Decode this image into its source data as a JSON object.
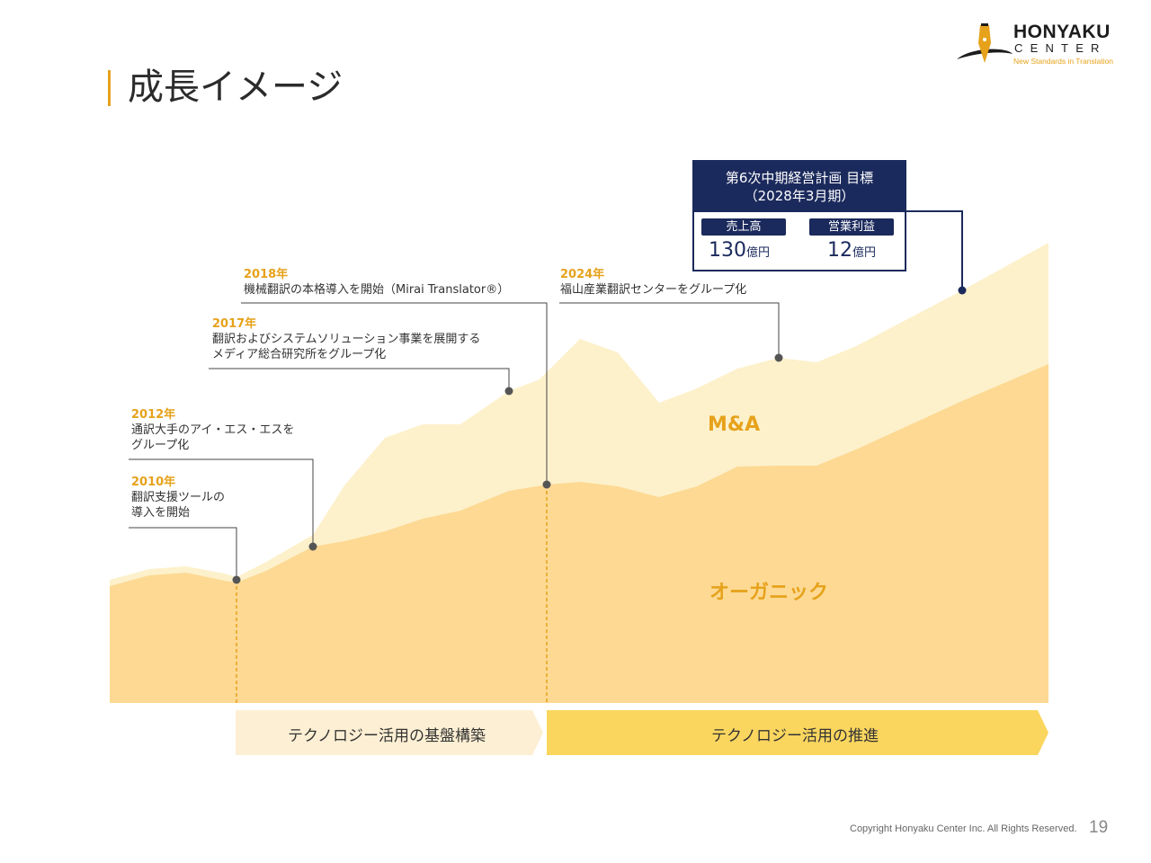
{
  "page": {
    "title": "成長イメージ",
    "page_number": "19",
    "copyright": "Copyright Honyaku Center Inc. All Rights Reserved."
  },
  "logo": {
    "main": "HONYAKU",
    "sub": "CENTER",
    "tagline": "New Standards in Translation"
  },
  "areas": {
    "ma_label": "M&A",
    "organic_label": "オーガニック"
  },
  "milestones": [
    {
      "year": "2010年",
      "lines": [
        "翻訳支援ツールの",
        "導入を開始"
      ]
    },
    {
      "year": "2012年",
      "lines": [
        "通訳大手のアイ・エス・エスを",
        "グループ化"
      ]
    },
    {
      "year": "2017年",
      "lines": [
        "翻訳およびシステムソリューション事業を展開する",
        "メディア総合研究所をグループ化"
      ]
    },
    {
      "year": "2018年",
      "lines": [
        "機械翻訳の本格導入を開始（Mirai Translator®）"
      ]
    },
    {
      "year": "2024年",
      "lines": [
        "福山産業翻訳センターをグループ化"
      ]
    }
  ],
  "target": {
    "title": "第6次中期経営計画 目標",
    "period": "（2028年3月期）",
    "sales_label": "売上高",
    "sales_value": "130",
    "sales_unit": "億円",
    "profit_label": "営業利益",
    "profit_value": "12",
    "profit_unit": "億円"
  },
  "phases": [
    {
      "label": "テクノロジー活用の基盤構築"
    },
    {
      "label": "テクノロジー活用の推進"
    }
  ],
  "colors": {
    "accent": "#E6A21B",
    "navy": "#1B2A5C",
    "organic": "#FDD993",
    "ma": "#FDF1CC",
    "phase1": "#FDEFD3",
    "phase2": "#FAD65F"
  }
}
